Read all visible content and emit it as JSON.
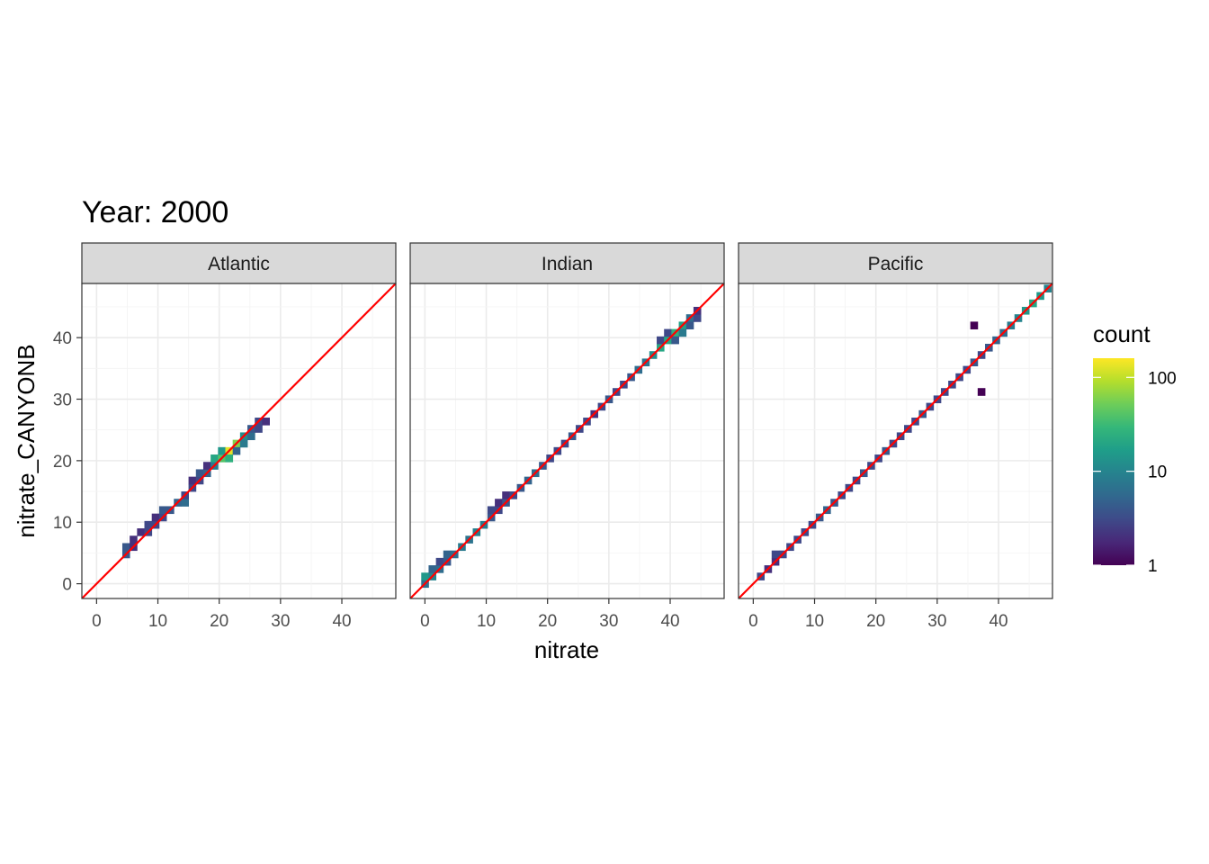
{
  "chart_data": {
    "type": "heatmap",
    "title": "Year: 2000",
    "xlabel": "nitrate",
    "ylabel": "nitrate_CANYONB",
    "xlim": [
      -2.4,
      48.8
    ],
    "ylim": [
      -2.4,
      48.8
    ],
    "x_ticks": [
      0,
      10,
      20,
      30,
      40
    ],
    "y_ticks": [
      0,
      10,
      20,
      30,
      40
    ],
    "bin_width": 1.2,
    "grid": true,
    "reference_line": {
      "slope": 1,
      "intercept": 0,
      "color": "#ff0000"
    },
    "legend": {
      "title": "count",
      "scale": "log10",
      "placement": "right",
      "breaks": [
        1,
        10,
        100
      ],
      "break_labels": [
        "1",
        "10",
        "100"
      ],
      "max": 160,
      "colors": [
        "#440154",
        "#482878",
        "#3e4a89",
        "#31688e",
        "#26828e",
        "#1f9e89",
        "#35b779",
        "#6dcd59",
        "#b4de2c",
        "#fde725"
      ]
    },
    "panels": [
      {
        "name": "Atlantic",
        "bins": [
          [
            4,
            4,
            4
          ],
          [
            4,
            5,
            4
          ],
          [
            5,
            5,
            2
          ],
          [
            5,
            6,
            2
          ],
          [
            6,
            7,
            2
          ],
          [
            7,
            7,
            3
          ],
          [
            7,
            8,
            3
          ],
          [
            8,
            8,
            3
          ],
          [
            8,
            9,
            2
          ],
          [
            9,
            9,
            3
          ],
          [
            9,
            10,
            4
          ],
          [
            10,
            10,
            4
          ],
          [
            11,
            11,
            5
          ],
          [
            12,
            11,
            6
          ],
          [
            12,
            12,
            3
          ],
          [
            13,
            13,
            3
          ],
          [
            13,
            14,
            2
          ],
          [
            14,
            14,
            3
          ],
          [
            14,
            15,
            4
          ],
          [
            15,
            15,
            5
          ],
          [
            15,
            16,
            2
          ],
          [
            16,
            16,
            8
          ],
          [
            16,
            17,
            20
          ],
          [
            17,
            17,
            40
          ],
          [
            17,
            18,
            15
          ],
          [
            18,
            18,
            130
          ],
          [
            18,
            17,
            25
          ],
          [
            19,
            19,
            60
          ],
          [
            19,
            18,
            5
          ],
          [
            20,
            20,
            12
          ],
          [
            20,
            19,
            8
          ],
          [
            21,
            20,
            6
          ],
          [
            21,
            21,
            4
          ],
          [
            22,
            21,
            3
          ],
          [
            22,
            22,
            3
          ],
          [
            23,
            22,
            2
          ]
        ]
      },
      {
        "name": "Indian",
        "bins": [
          [
            0,
            0,
            6
          ],
          [
            0,
            1,
            15
          ],
          [
            1,
            1,
            10
          ],
          [
            1,
            2,
            5
          ],
          [
            2,
            2,
            6
          ],
          [
            2,
            3,
            3
          ],
          [
            3,
            3,
            4
          ],
          [
            3,
            4,
            5
          ],
          [
            4,
            4,
            6
          ],
          [
            5,
            5,
            8
          ],
          [
            6,
            6,
            7
          ],
          [
            7,
            7,
            9
          ],
          [
            8,
            8,
            8
          ],
          [
            9,
            9,
            4
          ],
          [
            9,
            10,
            3
          ],
          [
            10,
            10,
            3
          ],
          [
            10,
            11,
            2
          ],
          [
            11,
            11,
            4
          ],
          [
            11,
            12,
            2
          ],
          [
            12,
            12,
            3
          ],
          [
            13,
            13,
            4
          ],
          [
            14,
            14,
            5
          ],
          [
            15,
            15,
            6
          ],
          [
            16,
            16,
            4
          ],
          [
            17,
            17,
            3
          ],
          [
            18,
            18,
            3
          ],
          [
            19,
            19,
            3
          ],
          [
            20,
            20,
            4
          ],
          [
            21,
            21,
            3
          ],
          [
            22,
            22,
            3
          ],
          [
            23,
            23,
            2
          ],
          [
            24,
            24,
            3
          ],
          [
            25,
            25,
            4
          ],
          [
            26,
            26,
            3
          ],
          [
            27,
            27,
            3
          ],
          [
            28,
            28,
            4
          ],
          [
            29,
            29,
            6
          ],
          [
            30,
            30,
            7
          ],
          [
            31,
            31,
            12
          ],
          [
            32,
            32,
            20
          ],
          [
            32,
            33,
            3
          ],
          [
            33,
            33,
            20
          ],
          [
            33,
            34,
            3
          ],
          [
            34,
            34,
            25
          ],
          [
            34,
            33,
            4
          ],
          [
            35,
            35,
            18
          ],
          [
            35,
            34,
            8
          ],
          [
            36,
            36,
            6
          ],
          [
            36,
            35,
            4
          ],
          [
            37,
            36,
            3
          ],
          [
            37,
            37,
            2
          ]
        ]
      },
      {
        "name": "Pacific",
        "bins": [
          [
            1,
            1,
            3
          ],
          [
            2,
            2,
            2
          ],
          [
            3,
            3,
            2
          ],
          [
            3,
            4,
            3
          ],
          [
            4,
            4,
            3
          ],
          [
            5,
            5,
            3
          ],
          [
            6,
            6,
            3
          ],
          [
            7,
            7,
            3
          ],
          [
            8,
            8,
            3
          ],
          [
            9,
            9,
            4
          ],
          [
            10,
            10,
            5
          ],
          [
            11,
            11,
            4
          ],
          [
            12,
            12,
            3
          ],
          [
            13,
            13,
            3
          ],
          [
            14,
            14,
            3
          ],
          [
            15,
            15,
            4
          ],
          [
            16,
            16,
            3
          ],
          [
            17,
            17,
            3
          ],
          [
            18,
            18,
            4
          ],
          [
            19,
            19,
            3
          ],
          [
            20,
            20,
            3
          ],
          [
            21,
            21,
            3
          ],
          [
            22,
            22,
            3
          ],
          [
            23,
            23,
            4
          ],
          [
            24,
            24,
            3
          ],
          [
            25,
            25,
            3
          ],
          [
            26,
            26,
            3
          ],
          [
            27,
            27,
            3
          ],
          [
            28,
            28,
            3
          ],
          [
            29,
            29,
            3
          ],
          [
            30,
            30,
            4
          ],
          [
            30,
            35,
            1
          ],
          [
            31,
            31,
            3
          ],
          [
            31,
            26,
            1
          ],
          [
            32,
            32,
            4
          ],
          [
            33,
            33,
            5
          ],
          [
            34,
            34,
            6
          ],
          [
            35,
            35,
            8
          ],
          [
            36,
            36,
            10
          ],
          [
            37,
            37,
            15
          ],
          [
            38,
            38,
            20
          ],
          [
            39,
            39,
            15
          ],
          [
            40,
            40,
            10
          ],
          [
            41,
            41,
            12
          ],
          [
            42,
            42,
            15
          ],
          [
            43,
            43,
            10
          ],
          [
            44,
            44,
            8
          ],
          [
            45,
            45,
            6
          ],
          [
            46,
            46,
            3
          ]
        ]
      }
    ]
  }
}
